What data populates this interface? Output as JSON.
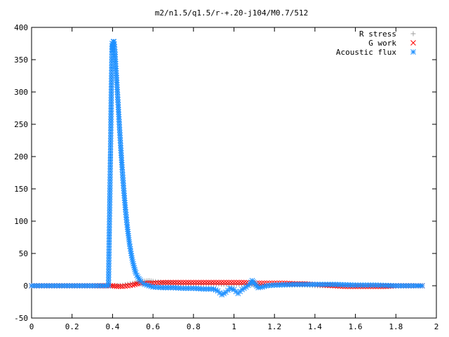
{
  "chart_data": {
    "type": "scatter",
    "title": "m2/n1.5/q1.5/r-+.20-j104/M0.7/512",
    "xlabel": "",
    "ylabel": "",
    "xlim": [
      0,
      2
    ],
    "ylim": [
      -50,
      400
    ],
    "xticks": [
      0,
      0.2,
      0.4,
      0.6,
      0.8,
      1,
      1.2,
      1.4,
      1.6,
      1.8,
      2
    ],
    "xtick_labels": [
      "0",
      "0.2",
      "0.4",
      "0.6",
      "0.8",
      "1",
      "1.2",
      "1.4",
      "1.6",
      "1.8",
      "2"
    ],
    "yticks": [
      -50,
      0,
      50,
      100,
      150,
      200,
      250,
      300,
      350,
      400
    ],
    "ytick_labels": [
      "-50",
      "0",
      "50",
      "100",
      "150",
      "200",
      "250",
      "300",
      "350",
      "400"
    ],
    "grid": false,
    "legend_position": "top-right",
    "series": [
      {
        "name": "R stress",
        "marker": "+",
        "color": "#a0a0a0",
        "points": [
          [
            0.0,
            0
          ],
          [
            0.05,
            0
          ],
          [
            0.1,
            0
          ],
          [
            0.15,
            0
          ],
          [
            0.2,
            0
          ],
          [
            0.25,
            0
          ],
          [
            0.3,
            0
          ],
          [
            0.35,
            0
          ],
          [
            0.4,
            0
          ],
          [
            0.45,
            1
          ],
          [
            0.5,
            4
          ],
          [
            0.55,
            7
          ],
          [
            0.58,
            8
          ],
          [
            0.6,
            7
          ],
          [
            0.65,
            5
          ],
          [
            0.7,
            4
          ],
          [
            0.75,
            3
          ],
          [
            0.8,
            3
          ],
          [
            0.85,
            3
          ],
          [
            0.9,
            3
          ],
          [
            0.95,
            2
          ],
          [
            1.0,
            2
          ],
          [
            1.05,
            2
          ],
          [
            1.1,
            1
          ],
          [
            1.15,
            1
          ],
          [
            1.2,
            1
          ],
          [
            1.25,
            1
          ],
          [
            1.3,
            1
          ],
          [
            1.35,
            1
          ],
          [
            1.4,
            0
          ],
          [
            1.5,
            0
          ],
          [
            1.6,
            0
          ],
          [
            1.7,
            0
          ],
          [
            1.8,
            0
          ],
          [
            1.9,
            0
          ],
          [
            1.93,
            0
          ]
        ]
      },
      {
        "name": "G work",
        "marker": "x",
        "color": "#ff0000",
        "points": [
          [
            0.0,
            0
          ],
          [
            0.1,
            0
          ],
          [
            0.2,
            0
          ],
          [
            0.3,
            0
          ],
          [
            0.38,
            0
          ],
          [
            0.4,
            0
          ],
          [
            0.42,
            -1
          ],
          [
            0.45,
            -1
          ],
          [
            0.5,
            1
          ],
          [
            0.52,
            3
          ],
          [
            0.55,
            4
          ],
          [
            0.58,
            4
          ],
          [
            0.6,
            4
          ],
          [
            0.65,
            5
          ],
          [
            0.7,
            5
          ],
          [
            0.75,
            5
          ],
          [
            0.8,
            5
          ],
          [
            0.85,
            5
          ],
          [
            0.9,
            5
          ],
          [
            0.95,
            5
          ],
          [
            1.0,
            5
          ],
          [
            1.05,
            5
          ],
          [
            1.1,
            4
          ],
          [
            1.15,
            4
          ],
          [
            1.2,
            4
          ],
          [
            1.25,
            4
          ],
          [
            1.3,
            3
          ],
          [
            1.35,
            3
          ],
          [
            1.4,
            2
          ],
          [
            1.45,
            1
          ],
          [
            1.5,
            0
          ],
          [
            1.55,
            -1
          ],
          [
            1.6,
            -1
          ],
          [
            1.65,
            -1
          ],
          [
            1.7,
            -1
          ],
          [
            1.75,
            -1
          ],
          [
            1.8,
            0
          ],
          [
            1.85,
            0
          ],
          [
            1.9,
            0
          ],
          [
            1.93,
            0
          ]
        ]
      },
      {
        "name": "Acoustic flux",
        "marker": "*",
        "color": "#1e90ff",
        "points": [
          [
            0.0,
            0
          ],
          [
            0.05,
            0
          ],
          [
            0.1,
            0
          ],
          [
            0.15,
            0
          ],
          [
            0.2,
            0
          ],
          [
            0.25,
            0
          ],
          [
            0.3,
            0
          ],
          [
            0.35,
            0
          ],
          [
            0.38,
            0
          ],
          [
            0.39,
            207
          ],
          [
            0.395,
            325
          ],
          [
            0.398,
            375
          ],
          [
            0.401,
            365
          ],
          [
            0.404,
            378
          ],
          [
            0.407,
            378
          ],
          [
            0.41,
            370
          ],
          [
            0.413,
            358
          ],
          [
            0.416,
            340
          ],
          [
            0.42,
            322
          ],
          [
            0.424,
            300
          ],
          [
            0.428,
            280
          ],
          [
            0.432,
            258
          ],
          [
            0.436,
            237
          ],
          [
            0.44,
            217
          ],
          [
            0.444,
            198
          ],
          [
            0.448,
            180
          ],
          [
            0.452,
            163
          ],
          [
            0.456,
            147
          ],
          [
            0.46,
            132
          ],
          [
            0.464,
            118
          ],
          [
            0.468,
            106
          ],
          [
            0.472,
            94
          ],
          [
            0.476,
            84
          ],
          [
            0.48,
            74
          ],
          [
            0.484,
            65
          ],
          [
            0.488,
            57
          ],
          [
            0.492,
            50
          ],
          [
            0.496,
            43
          ],
          [
            0.5,
            37
          ],
          [
            0.505,
            31
          ],
          [
            0.51,
            25
          ],
          [
            0.515,
            20
          ],
          [
            0.52,
            16
          ],
          [
            0.53,
            11
          ],
          [
            0.54,
            7
          ],
          [
            0.55,
            4
          ],
          [
            0.56,
            2
          ],
          [
            0.58,
            0
          ],
          [
            0.6,
            -2
          ],
          [
            0.65,
            -3
          ],
          [
            0.7,
            -3
          ],
          [
            0.75,
            -4
          ],
          [
            0.8,
            -4
          ],
          [
            0.85,
            -5
          ],
          [
            0.9,
            -5
          ],
          [
            0.92,
            -8
          ],
          [
            0.94,
            -14
          ],
          [
            0.96,
            -10
          ],
          [
            0.98,
            -4
          ],
          [
            1.0,
            -6
          ],
          [
            1.02,
            -12
          ],
          [
            1.04,
            -6
          ],
          [
            1.06,
            -2
          ],
          [
            1.08,
            3
          ],
          [
            1.09,
            8
          ],
          [
            1.1,
            4
          ],
          [
            1.12,
            -3
          ],
          [
            1.14,
            -2
          ],
          [
            1.16,
            0
          ],
          [
            1.2,
            1
          ],
          [
            1.3,
            2
          ],
          [
            1.4,
            2
          ],
          [
            1.5,
            2
          ],
          [
            1.6,
            1
          ],
          [
            1.7,
            1
          ],
          [
            1.8,
            0
          ],
          [
            1.9,
            0
          ],
          [
            1.93,
            0
          ]
        ]
      }
    ]
  }
}
